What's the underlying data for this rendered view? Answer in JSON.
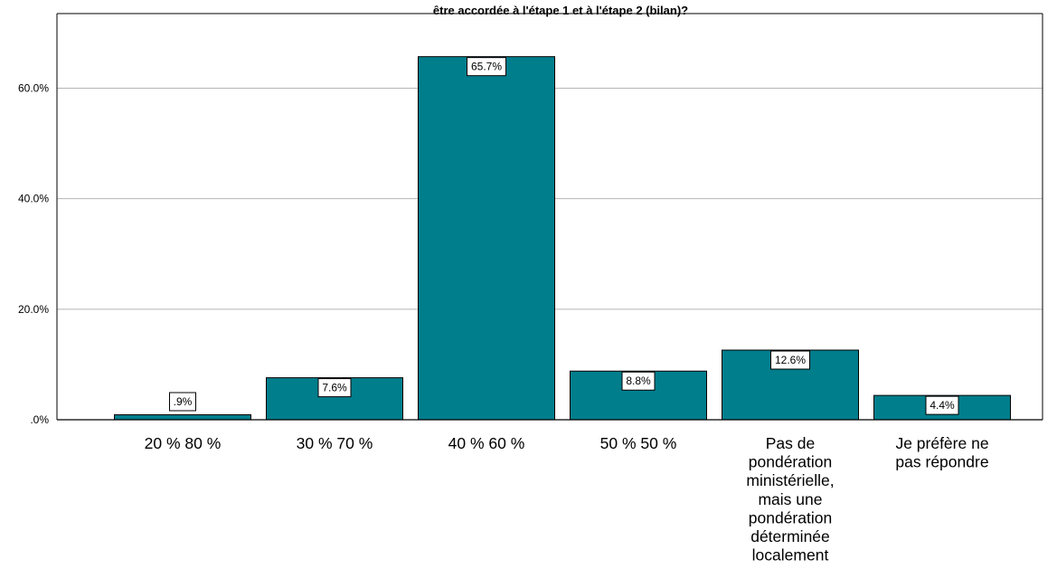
{
  "chart_data": {
    "type": "bar",
    "title": "être accordée à l'étape 1 et à l'étape 2 (bilan)?",
    "xlabel": "",
    "ylabel": "",
    "ylim": [
      0,
      73.5
    ],
    "yticks": [
      {
        "value": 0,
        "label": ".0%"
      },
      {
        "value": 20,
        "label": "20.0%"
      },
      {
        "value": 40,
        "label": "40.0%"
      },
      {
        "value": 60,
        "label": "60.0%"
      }
    ],
    "categories": [
      [
        "20 %    80 %"
      ],
      [
        "30 %    70 %"
      ],
      [
        "40 %    60 %"
      ],
      [
        "50 %    50 %"
      ],
      [
        "Pas de",
        "pondération",
        "ministérielle,",
        "mais une",
        "pondération",
        "déterminée",
        "localement"
      ],
      [
        "Je préfère ne",
        "pas répondre"
      ]
    ],
    "values": [
      0.9,
      7.6,
      65.7,
      8.8,
      12.6,
      4.4
    ],
    "value_labels": [
      ".9%",
      "7.6%",
      "65.7%",
      "8.8%",
      "12.6%",
      "4.4%"
    ],
    "bar_color": "#007E8C",
    "grid": true,
    "legend": "none"
  }
}
